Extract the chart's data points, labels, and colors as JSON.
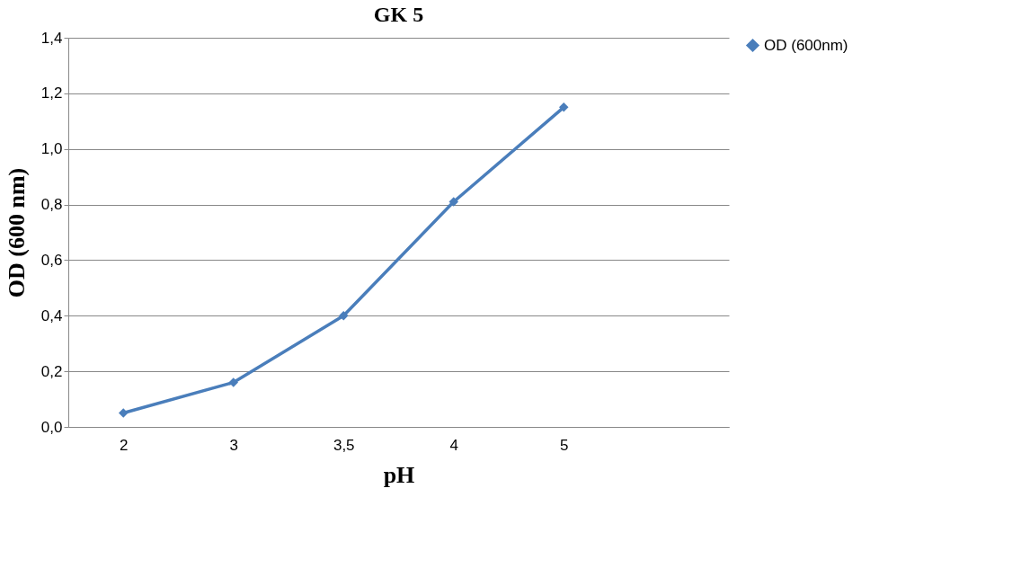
{
  "chart_data": {
    "type": "line",
    "title": "GK 5",
    "xlabel": "pH",
    "ylabel": "OD (600 nm)",
    "categories": [
      "2",
      "3",
      "3,5",
      "4",
      "5",
      null
    ],
    "series": [
      {
        "name": "OD (600nm)",
        "color": "#4a7ebb",
        "values": [
          0.05,
          0.16,
          0.4,
          0.81,
          1.15,
          null
        ]
      }
    ],
    "ylim": [
      0,
      1.4
    ],
    "yticks": [
      {
        "value": 0,
        "label": "0,0"
      },
      {
        "value": 0.2,
        "label": "0,2"
      },
      {
        "value": 0.4,
        "label": "0,4"
      },
      {
        "value": 0.6,
        "label": "0,6"
      },
      {
        "value": 0.8,
        "label": "0,8"
      },
      {
        "value": 1.0,
        "label": "1,0"
      },
      {
        "value": 1.2,
        "label": "1,2"
      },
      {
        "value": 1.4,
        "label": "1,4"
      }
    ],
    "grid": "y",
    "legend": "right",
    "marker": "diamond",
    "line_style": "solid"
  }
}
